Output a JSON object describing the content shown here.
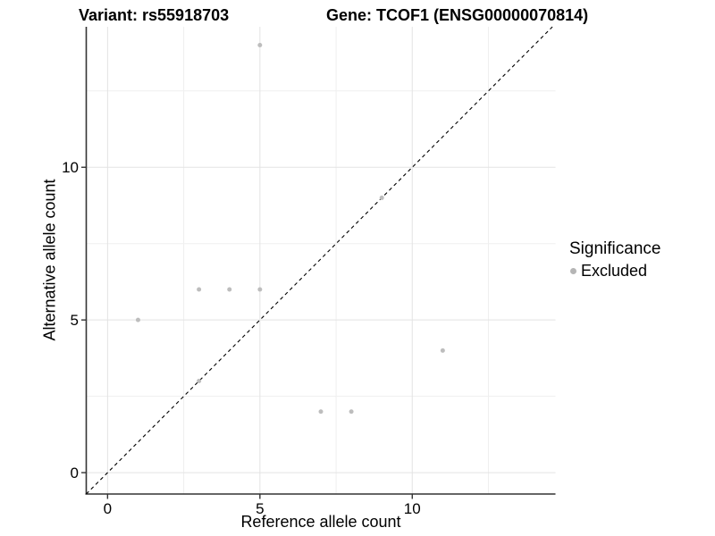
{
  "titles": {
    "variant": "Variant: rs55918703",
    "gene": "Gene: TCOF1 (ENSG00000070814)"
  },
  "legend": {
    "title": "Significance",
    "items": [
      {
        "label": "Excluded",
        "color": "#b5b5b5"
      }
    ],
    "position": "right"
  },
  "chart_data": {
    "type": "scatter",
    "title": "Variant: rs55918703   Gene: TCOF1 (ENSG00000070814)",
    "xlabel": "Reference allele count",
    "ylabel": "Alternative allele count",
    "xlim": [
      -0.7,
      14.7
    ],
    "ylim": [
      -0.7,
      14.6
    ],
    "x_ticks": [
      0,
      5,
      10
    ],
    "y_ticks": [
      0,
      5,
      10
    ],
    "x_minor_ticks": [
      2.5,
      7.5,
      12.5
    ],
    "y_minor_ticks": [
      2.5,
      7.5,
      12.5
    ],
    "grid": true,
    "legend_position": "right",
    "series": [
      {
        "name": "Excluded",
        "color": "#bdbdbd",
        "points": [
          [
            1,
            5
          ],
          [
            3,
            3
          ],
          [
            3,
            6
          ],
          [
            4,
            6
          ],
          [
            5,
            6
          ],
          [
            5,
            14
          ],
          [
            7,
            2
          ],
          [
            8,
            2
          ],
          [
            9,
            9
          ],
          [
            11,
            4
          ]
        ]
      }
    ],
    "reference_line": {
      "type": "identity",
      "slope": 1,
      "intercept": 0,
      "style": "dashed",
      "color": "#000000"
    }
  },
  "style_colors": {
    "grid_major": "#e3e3e3",
    "grid_minor": "#efefef",
    "axis_line": "#333333",
    "tick_label": "#000000",
    "point": "#bdbdbd"
  }
}
